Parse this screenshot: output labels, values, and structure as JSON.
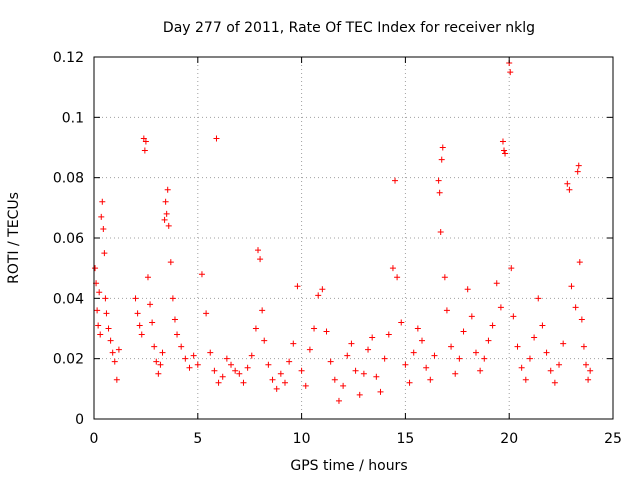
{
  "chart_data": {
    "type": "scatter",
    "title": "Day 277 of 2011, Rate Of TEC Index for receiver nklg",
    "xlabel": "GPS time / hours",
    "ylabel": "ROTI / TECUs",
    "xlim": [
      0,
      25
    ],
    "ylim": [
      0,
      0.12
    ],
    "xticks": [
      0,
      5,
      10,
      15,
      20,
      25
    ],
    "yticks": [
      0,
      0.02,
      0.04,
      0.06,
      0.08,
      0.1,
      0.12
    ],
    "xtick_labels": [
      "0",
      "5",
      "10",
      "15",
      "20",
      "25"
    ],
    "ytick_labels": [
      "0",
      "0.02",
      "0.04",
      "0.06",
      "0.08",
      "0.1",
      "0.12"
    ],
    "grid": true,
    "marker": "+",
    "color": "#ff0000",
    "series": [
      {
        "name": "ROTI",
        "points": [
          [
            0.05,
            0.05
          ],
          [
            0.1,
            0.045
          ],
          [
            0.15,
            0.036
          ],
          [
            0.2,
            0.031
          ],
          [
            0.25,
            0.042
          ],
          [
            0.3,
            0.028
          ],
          [
            0.35,
            0.067
          ],
          [
            0.4,
            0.072
          ],
          [
            0.45,
            0.063
          ],
          [
            0.5,
            0.055
          ],
          [
            0.55,
            0.04
          ],
          [
            0.6,
            0.035
          ],
          [
            0.7,
            0.03
          ],
          [
            0.8,
            0.026
          ],
          [
            0.9,
            0.022
          ],
          [
            1.0,
            0.019
          ],
          [
            1.1,
            0.013
          ],
          [
            1.2,
            0.023
          ],
          [
            2.0,
            0.04
          ],
          [
            2.1,
            0.035
          ],
          [
            2.2,
            0.031
          ],
          [
            2.3,
            0.028
          ],
          [
            2.4,
            0.093
          ],
          [
            2.45,
            0.089
          ],
          [
            2.5,
            0.092
          ],
          [
            2.6,
            0.047
          ],
          [
            2.7,
            0.038
          ],
          [
            2.8,
            0.032
          ],
          [
            2.9,
            0.024
          ],
          [
            3.0,
            0.019
          ],
          [
            3.1,
            0.015
          ],
          [
            3.2,
            0.018
          ],
          [
            3.3,
            0.022
          ],
          [
            3.4,
            0.066
          ],
          [
            3.45,
            0.072
          ],
          [
            3.5,
            0.068
          ],
          [
            3.55,
            0.076
          ],
          [
            3.6,
            0.064
          ],
          [
            3.7,
            0.052
          ],
          [
            3.8,
            0.04
          ],
          [
            3.9,
            0.033
          ],
          [
            4.0,
            0.028
          ],
          [
            4.2,
            0.024
          ],
          [
            4.4,
            0.02
          ],
          [
            4.6,
            0.017
          ],
          [
            4.8,
            0.021
          ],
          [
            5.0,
            0.018
          ],
          [
            5.2,
            0.048
          ],
          [
            5.4,
            0.035
          ],
          [
            5.6,
            0.022
          ],
          [
            5.8,
            0.016
          ],
          [
            5.9,
            0.093
          ],
          [
            6.0,
            0.012
          ],
          [
            6.2,
            0.014
          ],
          [
            6.4,
            0.02
          ],
          [
            6.6,
            0.018
          ],
          [
            6.8,
            0.016
          ],
          [
            7.0,
            0.015
          ],
          [
            7.2,
            0.012
          ],
          [
            7.4,
            0.017
          ],
          [
            7.6,
            0.021
          ],
          [
            7.8,
            0.03
          ],
          [
            7.9,
            0.056
          ],
          [
            8.0,
            0.053
          ],
          [
            8.1,
            0.036
          ],
          [
            8.2,
            0.026
          ],
          [
            8.4,
            0.018
          ],
          [
            8.6,
            0.013
          ],
          [
            8.8,
            0.01
          ],
          [
            9.0,
            0.015
          ],
          [
            9.2,
            0.012
          ],
          [
            9.4,
            0.019
          ],
          [
            9.6,
            0.025
          ],
          [
            9.8,
            0.044
          ],
          [
            10.0,
            0.016
          ],
          [
            10.2,
            0.011
          ],
          [
            10.4,
            0.023
          ],
          [
            10.6,
            0.03
          ],
          [
            10.8,
            0.041
          ],
          [
            11.0,
            0.043
          ],
          [
            11.2,
            0.029
          ],
          [
            11.4,
            0.019
          ],
          [
            11.6,
            0.013
          ],
          [
            11.8,
            0.006
          ],
          [
            12.0,
            0.011
          ],
          [
            12.2,
            0.021
          ],
          [
            12.4,
            0.025
          ],
          [
            12.6,
            0.016
          ],
          [
            12.8,
            0.008
          ],
          [
            13.0,
            0.015
          ],
          [
            13.2,
            0.023
          ],
          [
            13.4,
            0.027
          ],
          [
            13.6,
            0.014
          ],
          [
            13.8,
            0.009
          ],
          [
            14.0,
            0.02
          ],
          [
            14.2,
            0.028
          ],
          [
            14.4,
            0.05
          ],
          [
            14.5,
            0.079
          ],
          [
            14.6,
            0.047
          ],
          [
            14.8,
            0.032
          ],
          [
            15.0,
            0.018
          ],
          [
            15.2,
            0.012
          ],
          [
            15.4,
            0.022
          ],
          [
            15.6,
            0.03
          ],
          [
            15.8,
            0.026
          ],
          [
            16.0,
            0.017
          ],
          [
            16.2,
            0.013
          ],
          [
            16.4,
            0.021
          ],
          [
            16.6,
            0.079
          ],
          [
            16.65,
            0.075
          ],
          [
            16.7,
            0.062
          ],
          [
            16.75,
            0.086
          ],
          [
            16.8,
            0.09
          ],
          [
            16.9,
            0.047
          ],
          [
            17.0,
            0.036
          ],
          [
            17.2,
            0.024
          ],
          [
            17.4,
            0.015
          ],
          [
            17.6,
            0.02
          ],
          [
            17.8,
            0.029
          ],
          [
            18.0,
            0.043
          ],
          [
            18.2,
            0.034
          ],
          [
            18.4,
            0.022
          ],
          [
            18.6,
            0.016
          ],
          [
            18.8,
            0.02
          ],
          [
            19.0,
            0.026
          ],
          [
            19.2,
            0.031
          ],
          [
            19.4,
            0.045
          ],
          [
            19.6,
            0.037
          ],
          [
            19.7,
            0.092
          ],
          [
            19.75,
            0.089
          ],
          [
            19.8,
            0.088
          ],
          [
            20.0,
            0.118
          ],
          [
            20.05,
            0.115
          ],
          [
            20.1,
            0.05
          ],
          [
            20.2,
            0.034
          ],
          [
            20.4,
            0.024
          ],
          [
            20.6,
            0.017
          ],
          [
            20.8,
            0.013
          ],
          [
            21.0,
            0.02
          ],
          [
            21.2,
            0.027
          ],
          [
            21.4,
            0.04
          ],
          [
            21.6,
            0.031
          ],
          [
            21.8,
            0.022
          ],
          [
            22.0,
            0.016
          ],
          [
            22.2,
            0.012
          ],
          [
            22.4,
            0.018
          ],
          [
            22.6,
            0.025
          ],
          [
            22.8,
            0.078
          ],
          [
            22.9,
            0.076
          ],
          [
            23.0,
            0.044
          ],
          [
            23.2,
            0.037
          ],
          [
            23.3,
            0.082
          ],
          [
            23.35,
            0.084
          ],
          [
            23.4,
            0.052
          ],
          [
            23.5,
            0.033
          ],
          [
            23.6,
            0.024
          ],
          [
            23.7,
            0.018
          ],
          [
            23.8,
            0.013
          ],
          [
            23.9,
            0.016
          ]
        ]
      }
    ]
  }
}
